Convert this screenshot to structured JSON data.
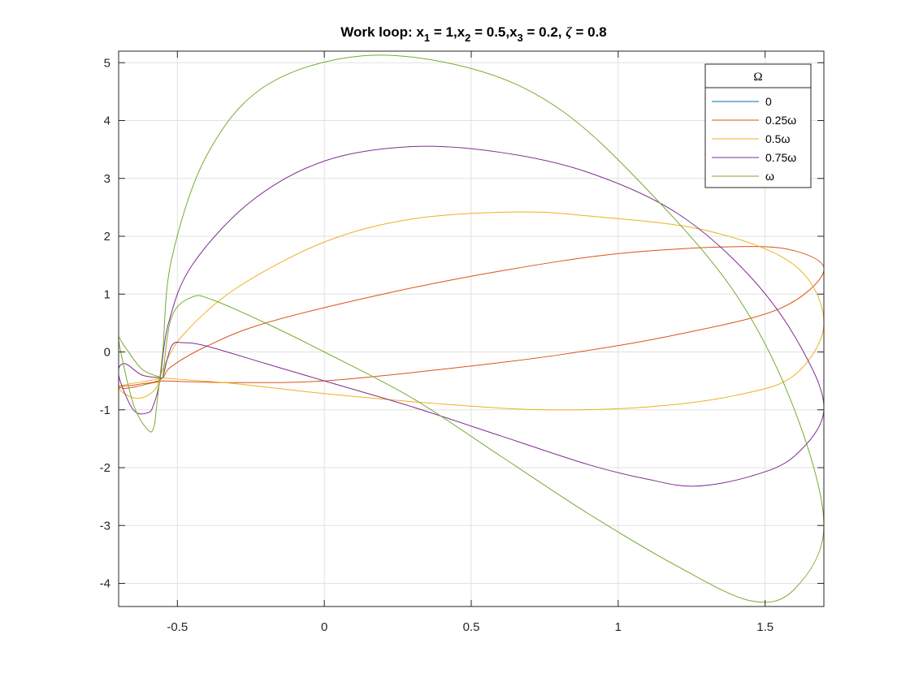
{
  "chart_data": {
    "type": "line",
    "title_parts": {
      "prefix": "Work loop: x",
      "s1": "1",
      "eq1": " = 1,x",
      "s2": "2",
      "eq2": " = 0.5,x",
      "s3": "3",
      "eq3": " = 0.2, ",
      "zeta": "ζ",
      "tail": " = 0.8"
    },
    "xlim": [
      -0.7,
      1.7
    ],
    "ylim": [
      -4.4,
      5.2
    ],
    "xticks": [
      -0.5,
      0,
      0.5,
      1,
      1.5
    ],
    "yticks": [
      -4,
      -3,
      -2,
      -1,
      0,
      1,
      2,
      3,
      4,
      5
    ],
    "grid": true,
    "legend": {
      "title": "Ω",
      "placement": "top-right",
      "entries": [
        {
          "label": "0",
          "color": "#0072BD"
        },
        {
          "label": "0.25ω",
          "color": "#D95319"
        },
        {
          "label": "0.5ω",
          "color": "#EDB120"
        },
        {
          "label": "0.75ω",
          "color": "#7E2F8E"
        },
        {
          "label": "ω",
          "color": "#77AC30"
        }
      ]
    },
    "series": [
      {
        "name": "0",
        "color": "#0072BD",
        "points": []
      },
      {
        "name": "0.25ω",
        "color": "#D95319",
        "points": [
          [
            -0.55,
            -0.5
          ],
          [
            -0.3,
            -0.53
          ],
          [
            0,
            -0.5
          ],
          [
            0.4,
            -0.3
          ],
          [
            0.8,
            -0.05
          ],
          [
            1.2,
            0.3
          ],
          [
            1.55,
            0.75
          ],
          [
            1.7,
            1.4
          ],
          [
            1.6,
            1.75
          ],
          [
            1.4,
            1.82
          ],
          [
            1.0,
            1.7
          ],
          [
            0.6,
            1.4
          ],
          [
            0.2,
            1.0
          ],
          [
            -0.2,
            0.5
          ],
          [
            -0.4,
            0.1
          ],
          [
            -0.52,
            -0.25
          ],
          [
            -0.55,
            -0.45
          ],
          [
            -0.58,
            -0.52
          ],
          [
            -0.62,
            -0.55
          ],
          [
            -0.66,
            -0.58
          ],
          [
            -0.7,
            -0.6
          ],
          [
            -0.68,
            -0.63
          ],
          [
            -0.64,
            -0.6
          ],
          [
            -0.6,
            -0.55
          ],
          [
            -0.55,
            -0.5
          ]
        ]
      },
      {
        "name": "0.5ω",
        "color": "#EDB120",
        "points": [
          [
            -0.55,
            -0.45
          ],
          [
            -0.3,
            -0.55
          ],
          [
            0,
            -0.72
          ],
          [
            0.4,
            -0.9
          ],
          [
            0.75,
            -1.0
          ],
          [
            1.1,
            -0.95
          ],
          [
            1.4,
            -0.75
          ],
          [
            1.6,
            -0.4
          ],
          [
            1.7,
            0.5
          ],
          [
            1.6,
            1.5
          ],
          [
            1.3,
            2.1
          ],
          [
            0.9,
            2.35
          ],
          [
            0.65,
            2.42
          ],
          [
            0.3,
            2.3
          ],
          [
            0,
            1.9
          ],
          [
            -0.3,
            1.1
          ],
          [
            -0.48,
            0.3
          ],
          [
            -0.55,
            -0.3
          ],
          [
            -0.57,
            -0.6
          ],
          [
            -0.6,
            -0.75
          ],
          [
            -0.64,
            -0.8
          ],
          [
            -0.68,
            -0.72
          ],
          [
            -0.7,
            -0.6
          ],
          [
            -0.66,
            -0.55
          ],
          [
            -0.6,
            -0.5
          ],
          [
            -0.55,
            -0.45
          ]
        ]
      },
      {
        "name": "0.75ω",
        "color": "#7E2F8E",
        "points": [
          [
            -0.55,
            -0.45
          ],
          [
            -0.52,
            0.1
          ],
          [
            -0.48,
            0.16
          ],
          [
            -0.4,
            0.1
          ],
          [
            -0.2,
            -0.2
          ],
          [
            0,
            -0.5
          ],
          [
            0.3,
            -0.95
          ],
          [
            0.6,
            -1.45
          ],
          [
            0.9,
            -1.95
          ],
          [
            1.1,
            -2.2
          ],
          [
            1.26,
            -2.32
          ],
          [
            1.45,
            -2.15
          ],
          [
            1.6,
            -1.8
          ],
          [
            1.7,
            -1.0
          ],
          [
            1.62,
            0.1
          ],
          [
            1.45,
            1.3
          ],
          [
            1.2,
            2.4
          ],
          [
            0.9,
            3.1
          ],
          [
            0.6,
            3.45
          ],
          [
            0.3,
            3.55
          ],
          [
            0,
            3.3
          ],
          [
            -0.25,
            2.6
          ],
          [
            -0.45,
            1.5
          ],
          [
            -0.53,
            0.5
          ],
          [
            -0.56,
            -0.5
          ],
          [
            -0.58,
            -0.9
          ],
          [
            -0.6,
            -1.05
          ],
          [
            -0.65,
            -1.0
          ],
          [
            -0.7,
            -0.4
          ],
          [
            -0.68,
            -0.2
          ],
          [
            -0.62,
            -0.4
          ],
          [
            -0.55,
            -0.45
          ]
        ]
      },
      {
        "name": "ω",
        "color": "#77AC30",
        "points": [
          [
            -0.55,
            -0.45
          ],
          [
            -0.52,
            0.6
          ],
          [
            -0.45,
            0.95
          ],
          [
            -0.38,
            0.9
          ],
          [
            -0.2,
            0.5
          ],
          [
            0,
            0.0
          ],
          [
            0.3,
            -0.8
          ],
          [
            0.6,
            -1.8
          ],
          [
            0.9,
            -2.8
          ],
          [
            1.2,
            -3.7
          ],
          [
            1.45,
            -4.3
          ],
          [
            1.6,
            -4.1
          ],
          [
            1.7,
            -3.0
          ],
          [
            1.6,
            -1.0
          ],
          [
            1.4,
            1.0
          ],
          [
            1.1,
            2.8
          ],
          [
            0.8,
            4.2
          ],
          [
            0.5,
            4.9
          ],
          [
            0.13,
            5.12
          ],
          [
            -0.2,
            4.6
          ],
          [
            -0.4,
            3.4
          ],
          [
            -0.52,
            1.6
          ],
          [
            -0.55,
            0.0
          ],
          [
            -0.57,
            -0.9
          ],
          [
            -0.58,
            -1.3
          ],
          [
            -0.6,
            -1.35
          ],
          [
            -0.65,
            -0.9
          ],
          [
            -0.7,
            0.2
          ],
          [
            -0.68,
            0.1
          ],
          [
            -0.62,
            -0.3
          ],
          [
            -0.55,
            -0.45
          ]
        ]
      }
    ]
  }
}
